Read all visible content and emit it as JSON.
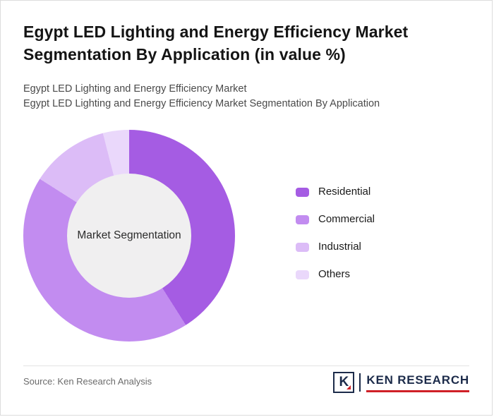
{
  "page": {
    "title": "Egypt LED Lighting and Energy Efficiency Market Segmentation By Application (in value %)",
    "subtitle1": "Egypt LED Lighting and Energy Efficiency Market",
    "subtitle2": "Egypt LED Lighting and Energy Efficiency Market Segmentation By Application"
  },
  "chart_data": {
    "type": "pie",
    "donut": true,
    "title": "Egypt LED Lighting and Energy Efficiency Market Segmentation By Application (in value %)",
    "center_label": "Market Segmentation",
    "legend_position": "right",
    "center_background": "#f0eff0",
    "segments": [
      {
        "label": "Residential",
        "value": 41,
        "color": "#a55ce3"
      },
      {
        "label": "Commercial",
        "value": 43,
        "color": "#c28cf0"
      },
      {
        "label": "Industrial",
        "value": 12,
        "color": "#dcbcf7"
      },
      {
        "label": "Others",
        "value": 4,
        "color": "#ead8fb"
      }
    ]
  },
  "footer": {
    "source": "Source: Ken Research Analysis",
    "logo": {
      "letter": "K",
      "text": "KEN RESEARCH",
      "accent_color": "#cf2027",
      "brand_color": "#1c2b4a"
    }
  }
}
